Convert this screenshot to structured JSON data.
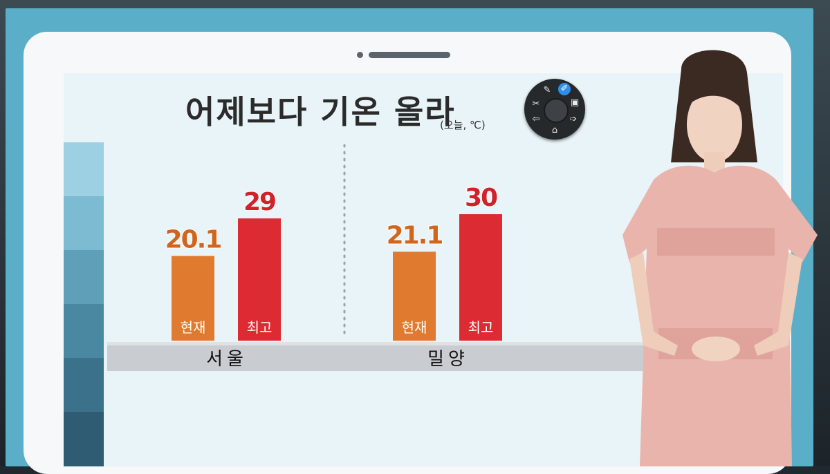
{
  "title": "어제보다 기온 올라",
  "subtitle": "(오늘, ℃)",
  "colors": {
    "current": "#e07a2e",
    "high": "#dc2b32",
    "baseline": "#c9ccd0",
    "screen": "#5aaec8",
    "panel": "#e9f4f8"
  },
  "chart_data": {
    "type": "bar",
    "title": "어제보다 기온 올라",
    "subtitle": "(오늘, ℃)",
    "categories": [
      "서울",
      "밀양"
    ],
    "series": [
      {
        "name": "현재",
        "values": [
          20.1,
          21.1
        ]
      },
      {
        "name": "최고",
        "values": [
          29,
          30
        ]
      }
    ],
    "value_labels": [
      [
        "20.1",
        "29"
      ],
      [
        "21.1",
        "30"
      ]
    ],
    "ylim": [
      0,
      32
    ],
    "grid": false
  },
  "tools": {
    "scissors_icon": "scissors-icon",
    "pen_icon": "pen-icon",
    "marker_icon": "marker-icon",
    "screen_icon": "screen-icon",
    "next_icon": "next-icon",
    "prev_icon": "prev-icon",
    "home_icon": "home-icon"
  }
}
